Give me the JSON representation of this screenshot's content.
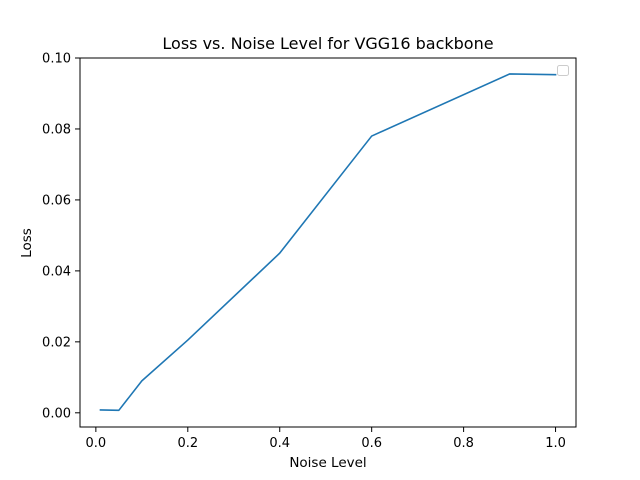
{
  "chart_data": {
    "type": "line",
    "title": "Loss vs. Noise Level for VGG16 backbone",
    "xlabel": "Noise Level",
    "ylabel": "Loss",
    "xlim": [
      -0.0345,
      1.0445
    ],
    "ylim": [
      -0.004,
      0.1
    ],
    "x_ticks": [
      0.0,
      0.2,
      0.4,
      0.6,
      0.8,
      1.0
    ],
    "x_tick_labels": [
      "0.0",
      "0.2",
      "0.4",
      "0.6",
      "0.8",
      "1.0"
    ],
    "y_ticks": [
      0.0,
      0.02,
      0.04,
      0.06,
      0.08,
      0.1
    ],
    "y_tick_labels": [
      "0.00",
      "0.02",
      "0.04",
      "0.06",
      "0.08",
      "0.10"
    ],
    "grid": false,
    "legend": {
      "placement": "top-right",
      "entries": []
    },
    "series": [
      {
        "name": "",
        "color": "#1f77b4",
        "x": [
          0.01,
          0.05,
          0.1,
          0.2,
          0.4,
          0.6,
          0.9,
          1.0
        ],
        "y": [
          0.0008,
          0.0007,
          0.009,
          0.0205,
          0.045,
          0.078,
          0.0955,
          0.0953
        ]
      }
    ]
  }
}
